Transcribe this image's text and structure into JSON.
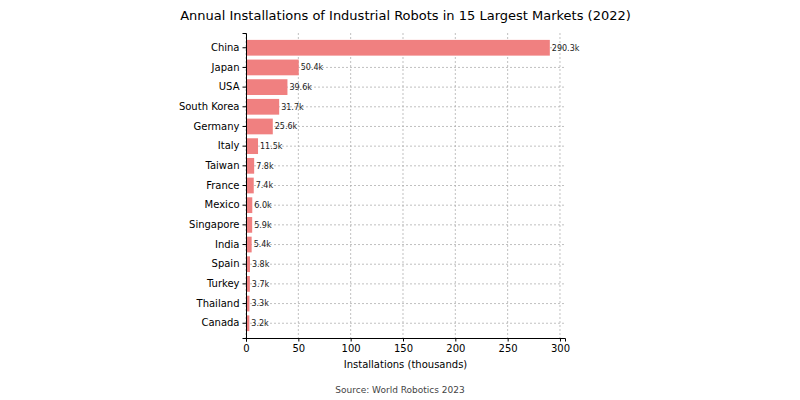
{
  "chart_data": {
    "type": "bar",
    "orientation": "horizontal",
    "title": "Annual Installations of Industrial Robots in 15 Largest Markets (2022)",
    "x_label": "Installations (thousands)",
    "annotations": [
      "Source: World Robotics 2023"
    ],
    "categories": [
      "China",
      "Japan",
      "USA",
      "South Korea",
      "Germany",
      "Italy",
      "Taiwan",
      "France",
      "Mexico",
      "Singapore",
      "India",
      "Spain",
      "Turkey",
      "Thailand",
      "Canada"
    ],
    "values": [
      290.3,
      50.4,
      39.6,
      31.7,
      25.6,
      11.5,
      7.8,
      7.4,
      6.0,
      5.9,
      5.4,
      3.8,
      3.7,
      3.3,
      3.2
    ],
    "value_labels": [
      "290.3k",
      "50.4k",
      "39.6k",
      "31.7k",
      "25.6k",
      "11.5k",
      "7.8k",
      "7.4k",
      "6.0k",
      "5.9k",
      "5.4k",
      "3.8k",
      "3.7k",
      "3.3k",
      "3.2k"
    ],
    "color": "#f08080",
    "xlim": [
      0,
      304.8
    ],
    "xticks": [
      0,
      50,
      100,
      150,
      200,
      250,
      300
    ],
    "grid": true,
    "data_labels": true
  }
}
